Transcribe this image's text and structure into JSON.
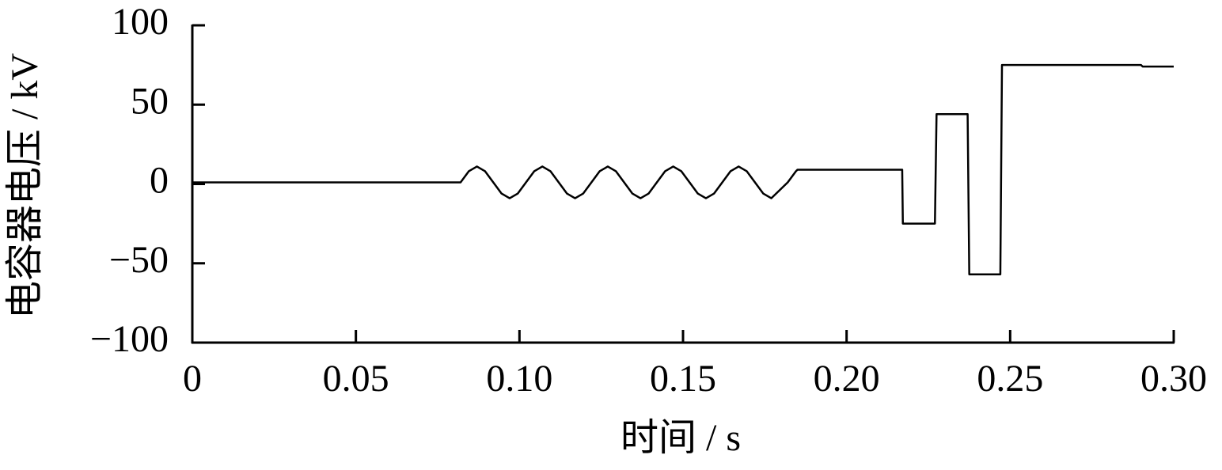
{
  "chart_data": {
    "type": "line",
    "x_label": "时间 / s",
    "y_label": "电容器电压 / kV",
    "color": "#000000",
    "grid": false,
    "xlim": [
      0,
      0.3
    ],
    "ylim": [
      -100,
      100
    ],
    "xticks": [
      0,
      0.05,
      {
        "value": 0.1,
        "label": "0.10"
      },
      0.15,
      {
        "value": 0.2,
        "label": "0.20"
      },
      0.25,
      {
        "value": 0.3,
        "label": "0.30"
      }
    ],
    "yticks": [
      {
        "value": -100,
        "label": "−100"
      },
      {
        "value": -50,
        "label": "−50"
      },
      0,
      50,
      100
    ],
    "x": [
      0,
      0.08,
      0.082,
      0.0845,
      0.087,
      0.0895,
      0.092,
      0.0945,
      0.097,
      0.0995,
      0.102,
      0.1045,
      0.107,
      0.1095,
      0.112,
      0.1145,
      0.117,
      0.1195,
      0.122,
      0.1245,
      0.127,
      0.1295,
      0.132,
      0.1345,
      0.137,
      0.1395,
      0.142,
      0.1445,
      0.147,
      0.1495,
      0.152,
      0.1545,
      0.157,
      0.1595,
      0.162,
      0.1645,
      0.167,
      0.1695,
      0.172,
      0.1745,
      0.177,
      0.182,
      0.1845,
      0.185,
      0.217,
      0.2172,
      0.227,
      0.2275,
      0.237,
      0.2375,
      0.247,
      0.2475,
      0.29,
      0.2905,
      0.3
    ],
    "values": [
      1,
      1,
      1,
      8,
      11,
      8,
      1,
      -6,
      -9,
      -6,
      1,
      8,
      11,
      8,
      1,
      -6,
      -9,
      -6,
      1,
      8,
      11,
      8,
      1,
      -6,
      -9,
      -6,
      1,
      8,
      11,
      8,
      1,
      -6,
      -9,
      -6,
      1,
      8,
      11,
      8,
      1,
      -6,
      -9,
      1,
      8,
      9,
      9,
      -25,
      -25,
      44,
      44,
      -57,
      -57,
      75,
      75,
      74,
      74
    ]
  }
}
